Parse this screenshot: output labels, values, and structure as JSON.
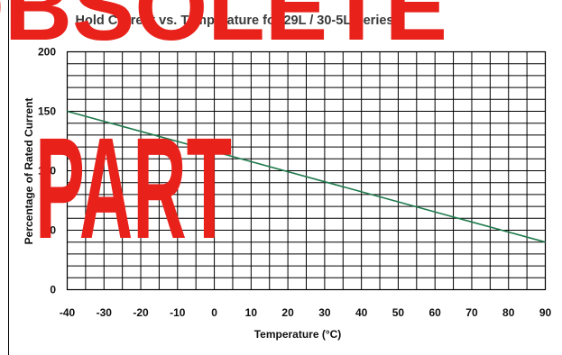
{
  "chart_data": {
    "type": "line",
    "title": "Hold Current vs. Temperature for 29L / 30-5L Series",
    "xlabel": "Temperature (°C)",
    "ylabel": "Percentage of Rated Current",
    "xlim": [
      -40,
      90
    ],
    "ylim": [
      0,
      200
    ],
    "xticks": [
      "-40",
      "-30",
      "-20",
      "-10",
      "0",
      "10",
      "20",
      "30",
      "40",
      "50",
      "60",
      "70",
      "80",
      "90"
    ],
    "yticks": [
      "0",
      "50",
      "100",
      "150",
      "200"
    ],
    "grid": true,
    "series": [
      {
        "x": [
          -40,
          90
        ],
        "y": [
          150,
          40
        ]
      }
    ],
    "colors": {
      "line": "#1f7a4d",
      "grid": "#000000",
      "watermark": "#e8221b",
      "title": "#3a3a3a"
    }
  },
  "watermark": {
    "top": "OBSOLETE",
    "bottom": "PART"
  }
}
